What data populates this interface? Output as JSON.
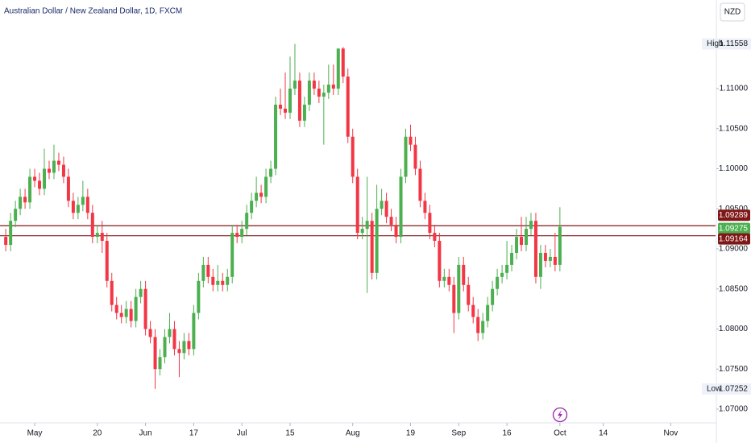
{
  "chart_data": {
    "type": "candlestick",
    "title": "Australian Dollar / New Zealand Dollar, 1D, FXCM",
    "currency": "NZD",
    "up_color": "#4caf50",
    "down_color": "#f23645",
    "level_color": "#7f1717",
    "open": [
      1.0915,
      1.0905,
      1.0935,
      1.095,
      1.0965,
      1.0958,
      1.099,
      1.0985,
      1.0975,
      1.1,
      1.0995,
      1.101,
      1.1005,
      1.099,
      1.096,
      1.0945,
      1.0955,
      1.0965,
      1.0945,
      1.0915,
      1.092,
      1.091,
      1.086,
      1.083,
      1.082,
      1.0815,
      1.0825,
      1.081,
      1.084,
      1.085,
      1.08,
      1.079,
      1.075,
      1.0765,
      1.079,
      1.08,
      1.0775,
      1.077,
      1.0785,
      1.0775,
      1.082,
      1.086,
      1.088,
      1.0865,
      1.0855,
      1.086,
      1.0855,
      1.0865,
      1.092,
      1.0915,
      1.0925,
      1.0945,
      1.096,
      1.097,
      1.0965,
      1.099,
      1.1,
      1.108,
      1.1075,
      1.107,
      1.11,
      1.111,
      1.106,
      1.108,
      1.111,
      1.11,
      1.109,
      1.1095,
      1.1105,
      1.11,
      1.115,
      1.1115,
      1.104,
      1.099,
      1.092,
      1.0925,
      1.0935,
      1.087,
      1.095,
      1.096,
      1.094,
      1.093,
      1.0915,
      1.099,
      1.104,
      1.103,
      1.1,
      1.096,
      1.0945,
      1.092,
      1.091,
      1.086,
      1.0865,
      1.0855,
      1.082,
      1.088,
      1.0855,
      1.083,
      1.0815,
      1.0795,
      1.081,
      1.083,
      1.085,
      1.0865,
      1.087,
      1.088,
      1.0895,
      1.0915,
      1.0905,
      1.0925,
      1.0935,
      1.0865,
      1.0895,
      1.0885,
      1.089,
      1.088
    ],
    "high": [
      1.0925,
      1.0945,
      1.096,
      1.0975,
      1.0975,
      1.1,
      1.1,
      1.0995,
      1.1025,
      1.101,
      1.103,
      1.102,
      1.1015,
      1.1,
      1.097,
      1.0965,
      1.0985,
      1.0975,
      1.0955,
      1.093,
      1.0935,
      1.092,
      1.087,
      1.084,
      1.083,
      1.0835,
      1.0835,
      1.085,
      1.086,
      1.086,
      1.081,
      1.08,
      1.0775,
      1.08,
      1.082,
      1.081,
      1.0785,
      1.0795,
      1.0795,
      1.083,
      1.087,
      1.089,
      1.089,
      1.0875,
      1.088,
      1.087,
      1.0875,
      1.093,
      1.093,
      1.0935,
      1.0955,
      1.097,
      1.099,
      1.098,
      1.1,
      1.101,
      1.109,
      1.11,
      1.112,
      1.114,
      1.11558,
      1.112,
      1.109,
      1.112,
      1.112,
      1.111,
      1.1105,
      1.113,
      1.113,
      1.115,
      1.1152,
      1.1125,
      1.105,
      1.1,
      1.094,
      1.099,
      1.0945,
      1.098,
      1.0975,
      1.097,
      1.095,
      1.094,
      1.1,
      1.105,
      1.1055,
      1.104,
      1.101,
      1.097,
      1.0955,
      1.093,
      1.092,
      1.0875,
      1.0875,
      1.0865,
      1.089,
      1.089,
      1.0865,
      1.084,
      1.0825,
      1.082,
      1.084,
      1.086,
      1.0875,
      1.088,
      1.091,
      1.0905,
      1.0925,
      1.094,
      1.094,
      1.0945,
      1.0945,
      1.0905,
      1.0905,
      1.09,
      1.092,
      1.0952
    ],
    "low": [
      1.0897,
      1.0897,
      1.0927,
      1.0942,
      1.095,
      1.095,
      1.0977,
      1.0967,
      1.0967,
      1.0987,
      1.0987,
      1.0997,
      1.0982,
      1.0952,
      1.0937,
      1.0937,
      1.0947,
      1.0937,
      1.0907,
      1.0907,
      1.0895,
      1.0852,
      1.0822,
      1.0812,
      1.0807,
      1.0807,
      1.0802,
      1.0802,
      1.0832,
      1.0792,
      1.0782,
      1.07252,
      1.0742,
      1.0757,
      1.0782,
      1.0767,
      1.074,
      1.0762,
      1.0767,
      1.0767,
      1.0812,
      1.0852,
      1.0857,
      1.0847,
      1.0847,
      1.0847,
      1.0847,
      1.0857,
      1.0907,
      1.0907,
      1.0917,
      1.0937,
      1.0952,
      1.0957,
      1.0957,
      1.0982,
      1.0992,
      1.1067,
      1.1062,
      1.1062,
      1.1092,
      1.1052,
      1.1052,
      1.1072,
      1.1092,
      1.1082,
      1.103,
      1.1087,
      1.1092,
      1.1092,
      1.1107,
      1.1032,
      1.0982,
      1.0912,
      1.0912,
      1.0845,
      1.0862,
      1.0862,
      1.0942,
      1.0932,
      1.0922,
      1.0907,
      1.0907,
      1.0982,
      1.1022,
      1.0992,
      1.0952,
      1.0937,
      1.0912,
      1.0902,
      1.0852,
      1.0852,
      1.0847,
      1.0795,
      1.0812,
      1.0847,
      1.0822,
      1.0807,
      1.0785,
      1.0787,
      1.0802,
      1.0822,
      1.0842,
      1.0857,
      1.0862,
      1.0872,
      1.0887,
      1.0897,
      1.0897,
      1.0917,
      1.0857,
      1.085,
      1.0877,
      1.0877,
      1.0872,
      1.0872
    ],
    "close": [
      1.0905,
      1.0935,
      1.095,
      1.0965,
      1.0958,
      1.099,
      1.0985,
      1.0975,
      1.1,
      1.0995,
      1.101,
      1.1005,
      1.099,
      1.096,
      1.0945,
      1.0955,
      1.0965,
      1.0945,
      1.0915,
      1.092,
      1.091,
      1.086,
      1.083,
      1.082,
      1.0815,
      1.0825,
      1.081,
      1.084,
      1.085,
      1.08,
      1.079,
      1.075,
      1.0765,
      1.079,
      1.08,
      1.0775,
      1.077,
      1.0785,
      1.0775,
      1.082,
      1.086,
      1.088,
      1.0865,
      1.0855,
      1.086,
      1.0855,
      1.0865,
      1.092,
      1.0915,
      1.0925,
      1.0945,
      1.096,
      1.097,
      1.0965,
      1.099,
      1.1,
      1.108,
      1.1075,
      1.107,
      1.11,
      1.111,
      1.106,
      1.108,
      1.111,
      1.11,
      1.109,
      1.1095,
      1.1105,
      1.11,
      1.115,
      1.1115,
      1.104,
      1.099,
      1.092,
      1.0925,
      1.0935,
      1.087,
      1.095,
      1.096,
      1.094,
      1.093,
      1.0915,
      1.099,
      1.104,
      1.103,
      1.1,
      1.096,
      1.0945,
      1.092,
      1.091,
      1.086,
      1.0865,
      1.0855,
      1.082,
      1.088,
      1.0855,
      1.083,
      1.0815,
      1.0795,
      1.081,
      1.083,
      1.085,
      1.0865,
      1.087,
      1.088,
      1.0895,
      1.0915,
      1.0905,
      1.0925,
      1.0935,
      1.0865,
      1.0895,
      1.0885,
      1.089,
      1.088,
      1.09275
    ],
    "xlim": [
      -1.2,
      147.3
    ],
    "xticks": [
      {
        "value": 6,
        "label": "May"
      },
      {
        "value": 19,
        "label": "20"
      },
      {
        "value": 29,
        "label": "Jun"
      },
      {
        "value": 39,
        "label": "17"
      },
      {
        "value": 49,
        "label": "Jul"
      },
      {
        "value": 59,
        "label": "15"
      },
      {
        "value": 72,
        "label": "Aug"
      },
      {
        "value": 84,
        "label": "19"
      },
      {
        "value": 94,
        "label": "Sep"
      },
      {
        "value": 104,
        "label": "16"
      },
      {
        "value": 115,
        "label": "Oct"
      },
      {
        "value": 124,
        "label": "14"
      },
      {
        "value": 138,
        "label": "Nov"
      }
    ],
    "ylim": [
      1.06879,
      1.12106
    ],
    "yticks": [
      {
        "value": 1.07,
        "label": "1.07000"
      },
      {
        "value": 1.075,
        "label": "1.07500"
      },
      {
        "value": 1.08,
        "label": "1.08000"
      },
      {
        "value": 1.085,
        "label": "1.08500"
      },
      {
        "value": 1.09,
        "label": "1.09000"
      },
      {
        "value": 1.095,
        "label": "1.09500"
      },
      {
        "value": 1.1,
        "label": "1.10000"
      },
      {
        "value": 1.105,
        "label": "1.10500"
      },
      {
        "value": 1.11,
        "label": "1.11000"
      }
    ],
    "levels": [
      1.09289,
      1.09164
    ],
    "high_marker": {
      "label": "High",
      "value": 1.11558
    },
    "low_marker": {
      "label": "Low",
      "value": 1.07252
    }
  }
}
